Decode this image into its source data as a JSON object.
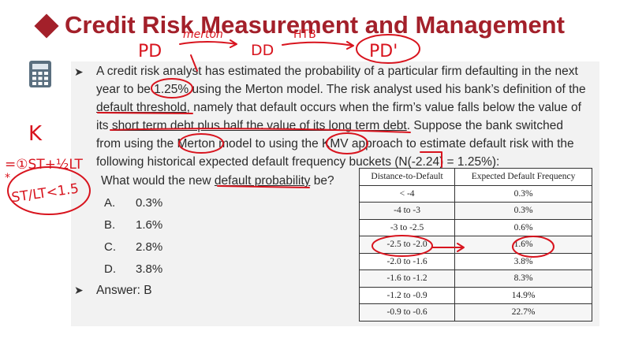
{
  "header": {
    "title": "Credit Risk Measurement and Management"
  },
  "question": {
    "line1": "A credit risk analyst has estimated the probability of a particular firm defaulting in the next",
    "line2_a": "year to be ",
    "line2_pd": "1.25%",
    "line2_b": " using the Merton model. The risk analyst used his bank’s definition of the",
    "line3_a": "default threshold",
    "line3_b": ", namely that default occurs when the firm’s value falls below the value of",
    "line4_a": "its ",
    "line4_b": "short term debt plus half the value of its long term debt",
    "line4_c": ". Suppose the bank switched",
    "line5": "from using the Merton model to using the KMV approach to estimate default risk with the",
    "line6": "following historical expected default frequency buckets (N(-2.24) = 1.25%):",
    "line7_a": "What would the new ",
    "line7_b": "default probability",
    "line7_c": " be?"
  },
  "options": [
    {
      "letter": "A.",
      "value": "0.3%"
    },
    {
      "letter": "B.",
      "value": "1.6%"
    },
    {
      "letter": "C.",
      "value": "2.8%"
    },
    {
      "letter": "D.",
      "value": "3.8%"
    }
  ],
  "answer": "Answer: B",
  "table": {
    "headers": [
      "Distance-to-Default",
      "Expected Default Frequency"
    ],
    "rows": [
      [
        "< -4",
        "0.3%"
      ],
      [
        "-4 to -3",
        "0.3%"
      ],
      [
        "-3 to -2.5",
        "0.6%"
      ],
      [
        "-2.5 to -2.0",
        "1.6%"
      ],
      [
        "-2.0 to -1.6",
        "3.8%"
      ],
      [
        "-1.6 to -1.2",
        "8.3%"
      ],
      [
        "-1.2 to -0.9",
        "14.9%"
      ],
      [
        "-0.9 to -0.6",
        "22.7%"
      ]
    ]
  },
  "annotations": {
    "pd": "PD",
    "merton": "merton",
    "dd": "DD",
    "htb": "HTB",
    "pd_prime": "PD'",
    "k": "K",
    "eq": "=①ST+½LT",
    "ratio": "ST/LT<1.5",
    "star": "*"
  },
  "colors": {
    "title": "#a3202a",
    "ink": "#d8141e",
    "panel": "#f2f2f2"
  }
}
